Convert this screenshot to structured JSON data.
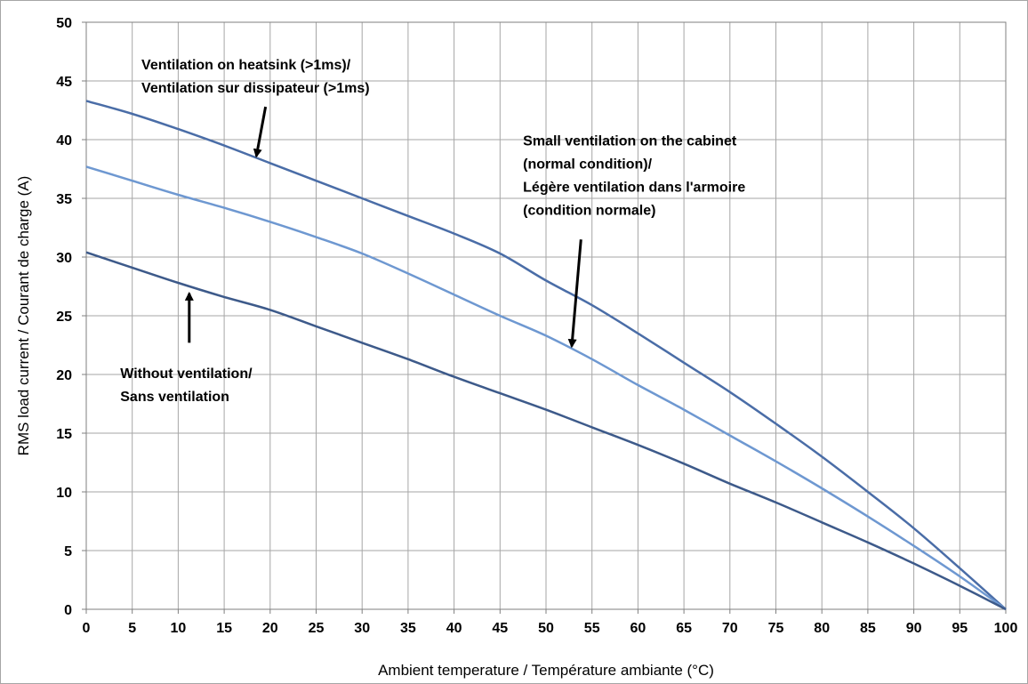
{
  "chart_data": {
    "type": "line",
    "title": "",
    "xlabel": "Ambient temperature / Température ambiante (°C)",
    "ylabel": "RMS load current / Courant de charge (A)",
    "xlim": [
      0,
      100
    ],
    "ylim": [
      0,
      50
    ],
    "x_ticks": [
      0,
      5,
      10,
      15,
      20,
      25,
      30,
      35,
      40,
      45,
      50,
      55,
      60,
      65,
      70,
      75,
      80,
      85,
      90,
      95,
      100
    ],
    "y_ticks": [
      0,
      5,
      10,
      15,
      20,
      25,
      30,
      35,
      40,
      45,
      50
    ],
    "grid": true,
    "legend": "none",
    "series": [
      {
        "color": "#4a6da7",
        "points": [
          [
            0,
            43.3
          ],
          [
            5,
            42.2
          ],
          [
            10,
            40.9
          ],
          [
            15,
            39.5
          ],
          [
            20,
            38.0
          ],
          [
            25,
            36.5
          ],
          [
            30,
            35.0
          ],
          [
            35,
            33.5
          ],
          [
            40,
            32.0
          ],
          [
            45,
            30.3
          ],
          [
            50,
            28.0
          ],
          [
            55,
            25.9
          ],
          [
            60,
            23.5
          ],
          [
            65,
            21.0
          ],
          [
            70,
            18.5
          ],
          [
            75,
            15.8
          ],
          [
            80,
            13.0
          ],
          [
            85,
            10.0
          ],
          [
            90,
            6.9
          ],
          [
            95,
            3.5
          ],
          [
            100,
            0
          ]
        ]
      },
      {
        "color": "#6e98d1",
        "points": [
          [
            0,
            37.7
          ],
          [
            5,
            36.5
          ],
          [
            10,
            35.3
          ],
          [
            15,
            34.2
          ],
          [
            20,
            33.0
          ],
          [
            25,
            31.7
          ],
          [
            30,
            30.3
          ],
          [
            35,
            28.6
          ],
          [
            40,
            26.8
          ],
          [
            45,
            25.0
          ],
          [
            50,
            23.3
          ],
          [
            55,
            21.3
          ],
          [
            60,
            19.1
          ],
          [
            65,
            17.0
          ],
          [
            70,
            14.8
          ],
          [
            75,
            12.6
          ],
          [
            80,
            10.3
          ],
          [
            85,
            7.9
          ],
          [
            90,
            5.4
          ],
          [
            95,
            2.8
          ],
          [
            100,
            0
          ]
        ]
      },
      {
        "color": "#3d5a8a",
        "points": [
          [
            0,
            30.4
          ],
          [
            5,
            29.1
          ],
          [
            10,
            27.8
          ],
          [
            15,
            26.6
          ],
          [
            20,
            25.5
          ],
          [
            25,
            24.1
          ],
          [
            30,
            22.7
          ],
          [
            35,
            21.3
          ],
          [
            40,
            19.8
          ],
          [
            45,
            18.4
          ],
          [
            50,
            17.0
          ],
          [
            55,
            15.5
          ],
          [
            60,
            14.0
          ],
          [
            65,
            12.4
          ],
          [
            70,
            10.7
          ],
          [
            75,
            9.1
          ],
          [
            80,
            7.4
          ],
          [
            85,
            5.7
          ],
          [
            90,
            3.9
          ],
          [
            95,
            2.0
          ],
          [
            100,
            0
          ]
        ]
      }
    ],
    "annotations": [
      {
        "lines": [
          "Ventilation  on heatsink (>1ms)/",
          "Ventilation sur dissipateur (>1ms)"
        ],
        "anchor": [
          6,
          46
        ],
        "arrow_from": [
          19.5,
          42.8
        ],
        "arrow_to": [
          18.5,
          38.6
        ]
      },
      {
        "lines": [
          "Small ventilation  on the cabinet",
          "(normal condition)/",
          "Légère ventilation dans l'armoire",
          "(condition normale)"
        ],
        "anchor": [
          47.5,
          39.5
        ],
        "arrow_from": [
          53.8,
          31.5
        ],
        "arrow_to": [
          52.8,
          22.4
        ]
      },
      {
        "lines": [
          "Without ventilation/",
          "Sans ventilation"
        ],
        "anchor": [
          3.7,
          19.7
        ],
        "arrow_from": [
          11.2,
          22.7
        ],
        "arrow_to": [
          11.2,
          26.9
        ]
      }
    ]
  }
}
